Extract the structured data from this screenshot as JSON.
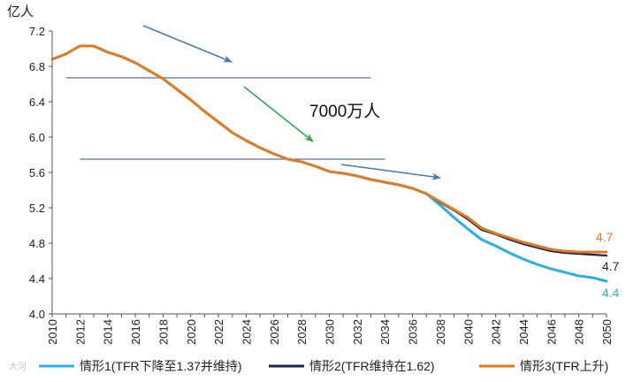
{
  "colors": {
    "series1": "#2ab0e6",
    "series2": "#1a2550",
    "series3": "#e07b22",
    "hline": "#4a78b8",
    "arrow_blue": "#4a78b8",
    "arrow_green": "#2faa4a",
    "axis": "#555555"
  },
  "annotation": {
    "text": "7000万人"
  },
  "watermark": "大河",
  "chart_data": {
    "type": "line",
    "ylabel": "亿人",
    "ylim": [
      4.0,
      7.2
    ],
    "yticks": [
      "4.0",
      "4.4",
      "4.8",
      "5.2",
      "5.6",
      "6.0",
      "6.4",
      "6.8",
      "7.2"
    ],
    "xlim": [
      2010,
      2050
    ],
    "xticks": [
      "2010",
      "2012",
      "2014",
      "2016",
      "2018",
      "2020",
      "2022",
      "2024",
      "2026",
      "2028",
      "2030",
      "2032",
      "2034",
      "2036",
      "2038",
      "2040",
      "2042",
      "2044",
      "2046",
      "2048",
      "2050"
    ],
    "x": [
      2010,
      2011,
      2012,
      2013,
      2014,
      2015,
      2016,
      2017,
      2018,
      2019,
      2020,
      2021,
      2022,
      2023,
      2024,
      2025,
      2026,
      2027,
      2028,
      2029,
      2030,
      2031,
      2032,
      2033,
      2034,
      2035,
      2036,
      2037,
      2038,
      2039,
      2040,
      2041,
      2042,
      2043,
      2044,
      2045,
      2046,
      2047,
      2048,
      2049,
      2050
    ],
    "grid": false,
    "legend_position": "bottom",
    "series": [
      {
        "name": "情形1(TFR下降至1.37并维持)",
        "color_key": "series1",
        "end_label": "4.4",
        "values": [
          6.88,
          6.94,
          7.03,
          7.03,
          6.96,
          6.91,
          6.84,
          6.75,
          6.66,
          6.54,
          6.42,
          6.29,
          6.17,
          6.05,
          5.96,
          5.88,
          5.81,
          5.75,
          5.72,
          5.67,
          5.61,
          5.59,
          5.56,
          5.52,
          5.49,
          5.46,
          5.42,
          5.36,
          5.23,
          5.09,
          4.96,
          4.84,
          4.77,
          4.69,
          4.62,
          4.56,
          4.51,
          4.47,
          4.43,
          4.41,
          4.37
        ]
      },
      {
        "name": "情形2(TFR维持在1.62)",
        "color_key": "series2",
        "end_label": "4.7",
        "values": [
          6.88,
          6.94,
          7.03,
          7.03,
          6.96,
          6.91,
          6.84,
          6.75,
          6.66,
          6.54,
          6.42,
          6.29,
          6.17,
          6.05,
          5.96,
          5.88,
          5.81,
          5.75,
          5.72,
          5.67,
          5.61,
          5.59,
          5.56,
          5.52,
          5.49,
          5.46,
          5.42,
          5.36,
          5.26,
          5.17,
          5.07,
          4.95,
          4.9,
          4.84,
          4.79,
          4.75,
          4.71,
          4.69,
          4.68,
          4.67,
          4.66
        ]
      },
      {
        "name": "情形3(TFR上升)",
        "color_key": "series3",
        "end_label": "4.7",
        "values": [
          6.88,
          6.94,
          7.03,
          7.03,
          6.96,
          6.91,
          6.84,
          6.75,
          6.66,
          6.54,
          6.42,
          6.29,
          6.17,
          6.05,
          5.96,
          5.88,
          5.81,
          5.75,
          5.72,
          5.67,
          5.61,
          5.59,
          5.56,
          5.52,
          5.49,
          5.46,
          5.42,
          5.36,
          5.27,
          5.18,
          5.09,
          4.97,
          4.91,
          4.86,
          4.81,
          4.77,
          4.73,
          4.71,
          4.7,
          4.7,
          4.7
        ]
      }
    ],
    "reference_lines": [
      {
        "y": 6.67,
        "x_from": 2011,
        "x_to": 2033
      },
      {
        "y": 5.75,
        "x_from": 2012,
        "x_to": 2034
      }
    ]
  }
}
